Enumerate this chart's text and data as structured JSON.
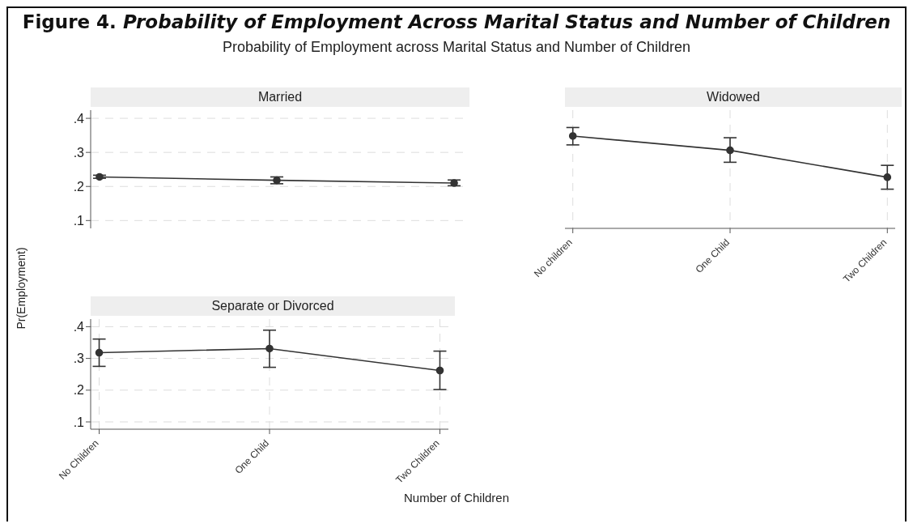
{
  "chart_data": [
    {
      "type": "line",
      "title": "Married",
      "annotations": [
        "Figure 4. Probability of Employment Across Marital Status and Number of Children",
        "Probability of Employment across Marital Status and Number of Children"
      ],
      "categories": [
        null,
        null,
        null
      ],
      "series": [
        {
          "color": "#333333",
          "values": [
            0.228,
            0.218,
            0.21
          ],
          "errors": [
            [
              0.224,
              0.233
            ],
            [
              0.208,
              0.228
            ],
            [
              0.202,
              0.219
            ]
          ]
        }
      ],
      "ylim": [
        0.077,
        0.424
      ],
      "yticks": [
        {
          "value": 0.1,
          "label": ".1"
        },
        {
          "value": 0.2,
          "label": ".2"
        },
        {
          "value": 0.3,
          "label": ".3"
        },
        {
          "value": 0.4,
          "label": ".4"
        }
      ],
      "grid": true,
      "marker": "circle",
      "tick_labels": "y"
    },
    {
      "type": "line",
      "title": "Widowed",
      "categories": [
        "No children",
        "One Child",
        "Two Children"
      ],
      "series": [
        {
          "color": "#333333",
          "values": [
            0.348,
            0.306,
            0.227
          ],
          "errors": [
            [
              0.322,
              0.373
            ],
            [
              0.271,
              0.343
            ],
            [
              0.192,
              0.262
            ]
          ]
        }
      ],
      "ylim": [
        0.077,
        0.424
      ],
      "yticks": [
        {
          "value": 0.1,
          "label": null
        },
        {
          "value": 0.2,
          "label": null
        },
        {
          "value": 0.3,
          "label": null
        },
        {
          "value": 0.4,
          "label": null
        }
      ],
      "grid": true,
      "marker": "circle",
      "tick_labels": "x"
    },
    {
      "type": "line",
      "title": "Separate or Divorced",
      "ylabel": "Pr(Employment)",
      "xlabel": "Number of Children",
      "categories": [
        "No Children",
        "One Child",
        "Two Children"
      ],
      "series": [
        {
          "color": "#333333",
          "values": [
            0.318,
            0.331,
            0.262
          ],
          "errors": [
            [
              0.275,
              0.361
            ],
            [
              0.272,
              0.389
            ],
            [
              0.202,
              0.323
            ]
          ]
        }
      ],
      "ylim": [
        0.077,
        0.424
      ],
      "yticks": [
        {
          "value": 0.1,
          "label": ".1"
        },
        {
          "value": 0.2,
          "label": ".2"
        },
        {
          "value": 0.3,
          "label": ".3"
        },
        {
          "value": 0.4,
          "label": ".4"
        }
      ],
      "grid": true,
      "marker": "circle"
    }
  ]
}
